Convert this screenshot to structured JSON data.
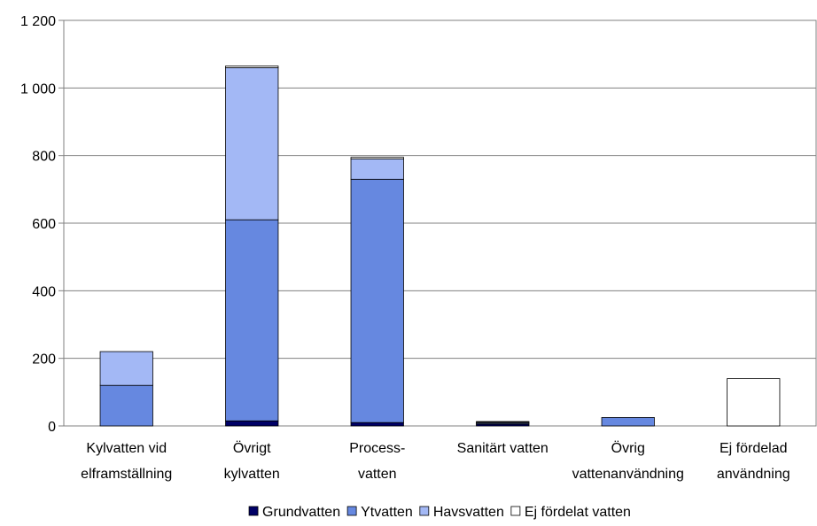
{
  "chart_data": {
    "type": "bar",
    "stacked": true,
    "title": "",
    "xlabel": "",
    "ylabel": "",
    "ylim": [
      0,
      1200
    ],
    "yticks": [
      0,
      200,
      400,
      600,
      800,
      1000,
      1200
    ],
    "ytick_labels": [
      "0",
      "200",
      "400",
      "600",
      "800",
      "1 000",
      "1 200"
    ],
    "grid": true,
    "legend_position": "bottom",
    "categories": [
      [
        "Kylvatten vid",
        "elframställning"
      ],
      [
        "Övrigt",
        "kylvatten"
      ],
      [
        "Process-",
        "vatten"
      ],
      [
        "Sanitärt vatten"
      ],
      [
        "Övrig",
        "vattenanvändning"
      ],
      [
        "Ej fördelad",
        "användning"
      ]
    ],
    "series": [
      {
        "name": "Grundvatten",
        "color": "#000066",
        "values": [
          0,
          15,
          10,
          5,
          0,
          0
        ]
      },
      {
        "name": "Ytvatten",
        "color": "#6688e0",
        "values": [
          120,
          595,
          720,
          3,
          25,
          0
        ]
      },
      {
        "name": "Havsvatten",
        "color": "#a3b8f5",
        "values": [
          100,
          450,
          60,
          3,
          0,
          0
        ]
      },
      {
        "name": "Ej fördelat vatten",
        "color": "#ffffff",
        "values": [
          0,
          5,
          5,
          2,
          0,
          140
        ]
      }
    ]
  }
}
